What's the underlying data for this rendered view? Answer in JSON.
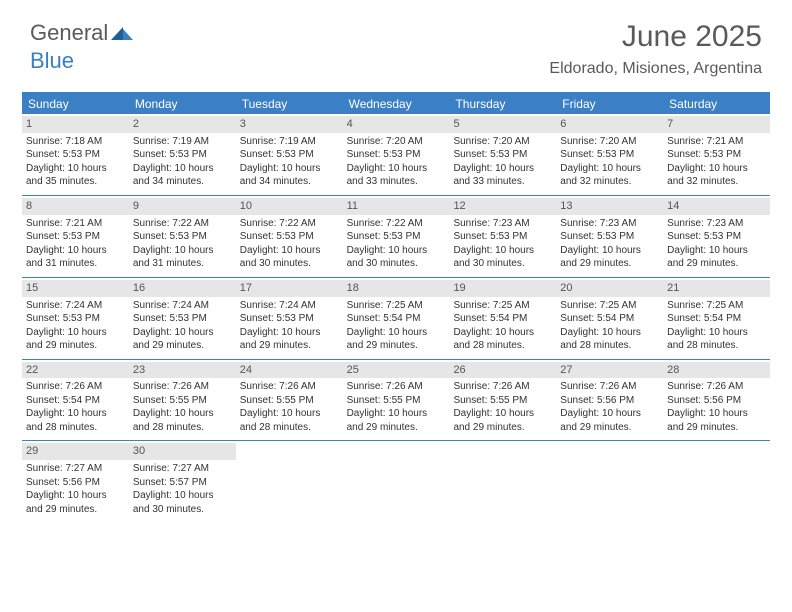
{
  "logo": {
    "general": "General",
    "blue": "Blue"
  },
  "title": {
    "month": "June 2025",
    "location": "Eldorado, Misiones, Argentina"
  },
  "colors": {
    "primary": "#3b7fc4",
    "day_header_bg": "#e6e6e6",
    "text": "#333333",
    "muted": "#5a5a5a",
    "background": "#ffffff"
  },
  "days_of_week": [
    "Sunday",
    "Monday",
    "Tuesday",
    "Wednesday",
    "Thursday",
    "Friday",
    "Saturday"
  ],
  "weeks": [
    [
      {
        "num": "1",
        "sunrise": "Sunrise: 7:18 AM",
        "sunset": "Sunset: 5:53 PM",
        "day1": "Daylight: 10 hours",
        "day2": "and 35 minutes."
      },
      {
        "num": "2",
        "sunrise": "Sunrise: 7:19 AM",
        "sunset": "Sunset: 5:53 PM",
        "day1": "Daylight: 10 hours",
        "day2": "and 34 minutes."
      },
      {
        "num": "3",
        "sunrise": "Sunrise: 7:19 AM",
        "sunset": "Sunset: 5:53 PM",
        "day1": "Daylight: 10 hours",
        "day2": "and 34 minutes."
      },
      {
        "num": "4",
        "sunrise": "Sunrise: 7:20 AM",
        "sunset": "Sunset: 5:53 PM",
        "day1": "Daylight: 10 hours",
        "day2": "and 33 minutes."
      },
      {
        "num": "5",
        "sunrise": "Sunrise: 7:20 AM",
        "sunset": "Sunset: 5:53 PM",
        "day1": "Daylight: 10 hours",
        "day2": "and 33 minutes."
      },
      {
        "num": "6",
        "sunrise": "Sunrise: 7:20 AM",
        "sunset": "Sunset: 5:53 PM",
        "day1": "Daylight: 10 hours",
        "day2": "and 32 minutes."
      },
      {
        "num": "7",
        "sunrise": "Sunrise: 7:21 AM",
        "sunset": "Sunset: 5:53 PM",
        "day1": "Daylight: 10 hours",
        "day2": "and 32 minutes."
      }
    ],
    [
      {
        "num": "8",
        "sunrise": "Sunrise: 7:21 AM",
        "sunset": "Sunset: 5:53 PM",
        "day1": "Daylight: 10 hours",
        "day2": "and 31 minutes."
      },
      {
        "num": "9",
        "sunrise": "Sunrise: 7:22 AM",
        "sunset": "Sunset: 5:53 PM",
        "day1": "Daylight: 10 hours",
        "day2": "and 31 minutes."
      },
      {
        "num": "10",
        "sunrise": "Sunrise: 7:22 AM",
        "sunset": "Sunset: 5:53 PM",
        "day1": "Daylight: 10 hours",
        "day2": "and 30 minutes."
      },
      {
        "num": "11",
        "sunrise": "Sunrise: 7:22 AM",
        "sunset": "Sunset: 5:53 PM",
        "day1": "Daylight: 10 hours",
        "day2": "and 30 minutes."
      },
      {
        "num": "12",
        "sunrise": "Sunrise: 7:23 AM",
        "sunset": "Sunset: 5:53 PM",
        "day1": "Daylight: 10 hours",
        "day2": "and 30 minutes."
      },
      {
        "num": "13",
        "sunrise": "Sunrise: 7:23 AM",
        "sunset": "Sunset: 5:53 PM",
        "day1": "Daylight: 10 hours",
        "day2": "and 29 minutes."
      },
      {
        "num": "14",
        "sunrise": "Sunrise: 7:23 AM",
        "sunset": "Sunset: 5:53 PM",
        "day1": "Daylight: 10 hours",
        "day2": "and 29 minutes."
      }
    ],
    [
      {
        "num": "15",
        "sunrise": "Sunrise: 7:24 AM",
        "sunset": "Sunset: 5:53 PM",
        "day1": "Daylight: 10 hours",
        "day2": "and 29 minutes."
      },
      {
        "num": "16",
        "sunrise": "Sunrise: 7:24 AM",
        "sunset": "Sunset: 5:53 PM",
        "day1": "Daylight: 10 hours",
        "day2": "and 29 minutes."
      },
      {
        "num": "17",
        "sunrise": "Sunrise: 7:24 AM",
        "sunset": "Sunset: 5:53 PM",
        "day1": "Daylight: 10 hours",
        "day2": "and 29 minutes."
      },
      {
        "num": "18",
        "sunrise": "Sunrise: 7:25 AM",
        "sunset": "Sunset: 5:54 PM",
        "day1": "Daylight: 10 hours",
        "day2": "and 29 minutes."
      },
      {
        "num": "19",
        "sunrise": "Sunrise: 7:25 AM",
        "sunset": "Sunset: 5:54 PM",
        "day1": "Daylight: 10 hours",
        "day2": "and 28 minutes."
      },
      {
        "num": "20",
        "sunrise": "Sunrise: 7:25 AM",
        "sunset": "Sunset: 5:54 PM",
        "day1": "Daylight: 10 hours",
        "day2": "and 28 minutes."
      },
      {
        "num": "21",
        "sunrise": "Sunrise: 7:25 AM",
        "sunset": "Sunset: 5:54 PM",
        "day1": "Daylight: 10 hours",
        "day2": "and 28 minutes."
      }
    ],
    [
      {
        "num": "22",
        "sunrise": "Sunrise: 7:26 AM",
        "sunset": "Sunset: 5:54 PM",
        "day1": "Daylight: 10 hours",
        "day2": "and 28 minutes."
      },
      {
        "num": "23",
        "sunrise": "Sunrise: 7:26 AM",
        "sunset": "Sunset: 5:55 PM",
        "day1": "Daylight: 10 hours",
        "day2": "and 28 minutes."
      },
      {
        "num": "24",
        "sunrise": "Sunrise: 7:26 AM",
        "sunset": "Sunset: 5:55 PM",
        "day1": "Daylight: 10 hours",
        "day2": "and 28 minutes."
      },
      {
        "num": "25",
        "sunrise": "Sunrise: 7:26 AM",
        "sunset": "Sunset: 5:55 PM",
        "day1": "Daylight: 10 hours",
        "day2": "and 29 minutes."
      },
      {
        "num": "26",
        "sunrise": "Sunrise: 7:26 AM",
        "sunset": "Sunset: 5:55 PM",
        "day1": "Daylight: 10 hours",
        "day2": "and 29 minutes."
      },
      {
        "num": "27",
        "sunrise": "Sunrise: 7:26 AM",
        "sunset": "Sunset: 5:56 PM",
        "day1": "Daylight: 10 hours",
        "day2": "and 29 minutes."
      },
      {
        "num": "28",
        "sunrise": "Sunrise: 7:26 AM",
        "sunset": "Sunset: 5:56 PM",
        "day1": "Daylight: 10 hours",
        "day2": "and 29 minutes."
      }
    ],
    [
      {
        "num": "29",
        "sunrise": "Sunrise: 7:27 AM",
        "sunset": "Sunset: 5:56 PM",
        "day1": "Daylight: 10 hours",
        "day2": "and 29 minutes."
      },
      {
        "num": "30",
        "sunrise": "Sunrise: 7:27 AM",
        "sunset": "Sunset: 5:57 PM",
        "day1": "Daylight: 10 hours",
        "day2": "and 30 minutes."
      },
      null,
      null,
      null,
      null,
      null
    ]
  ]
}
